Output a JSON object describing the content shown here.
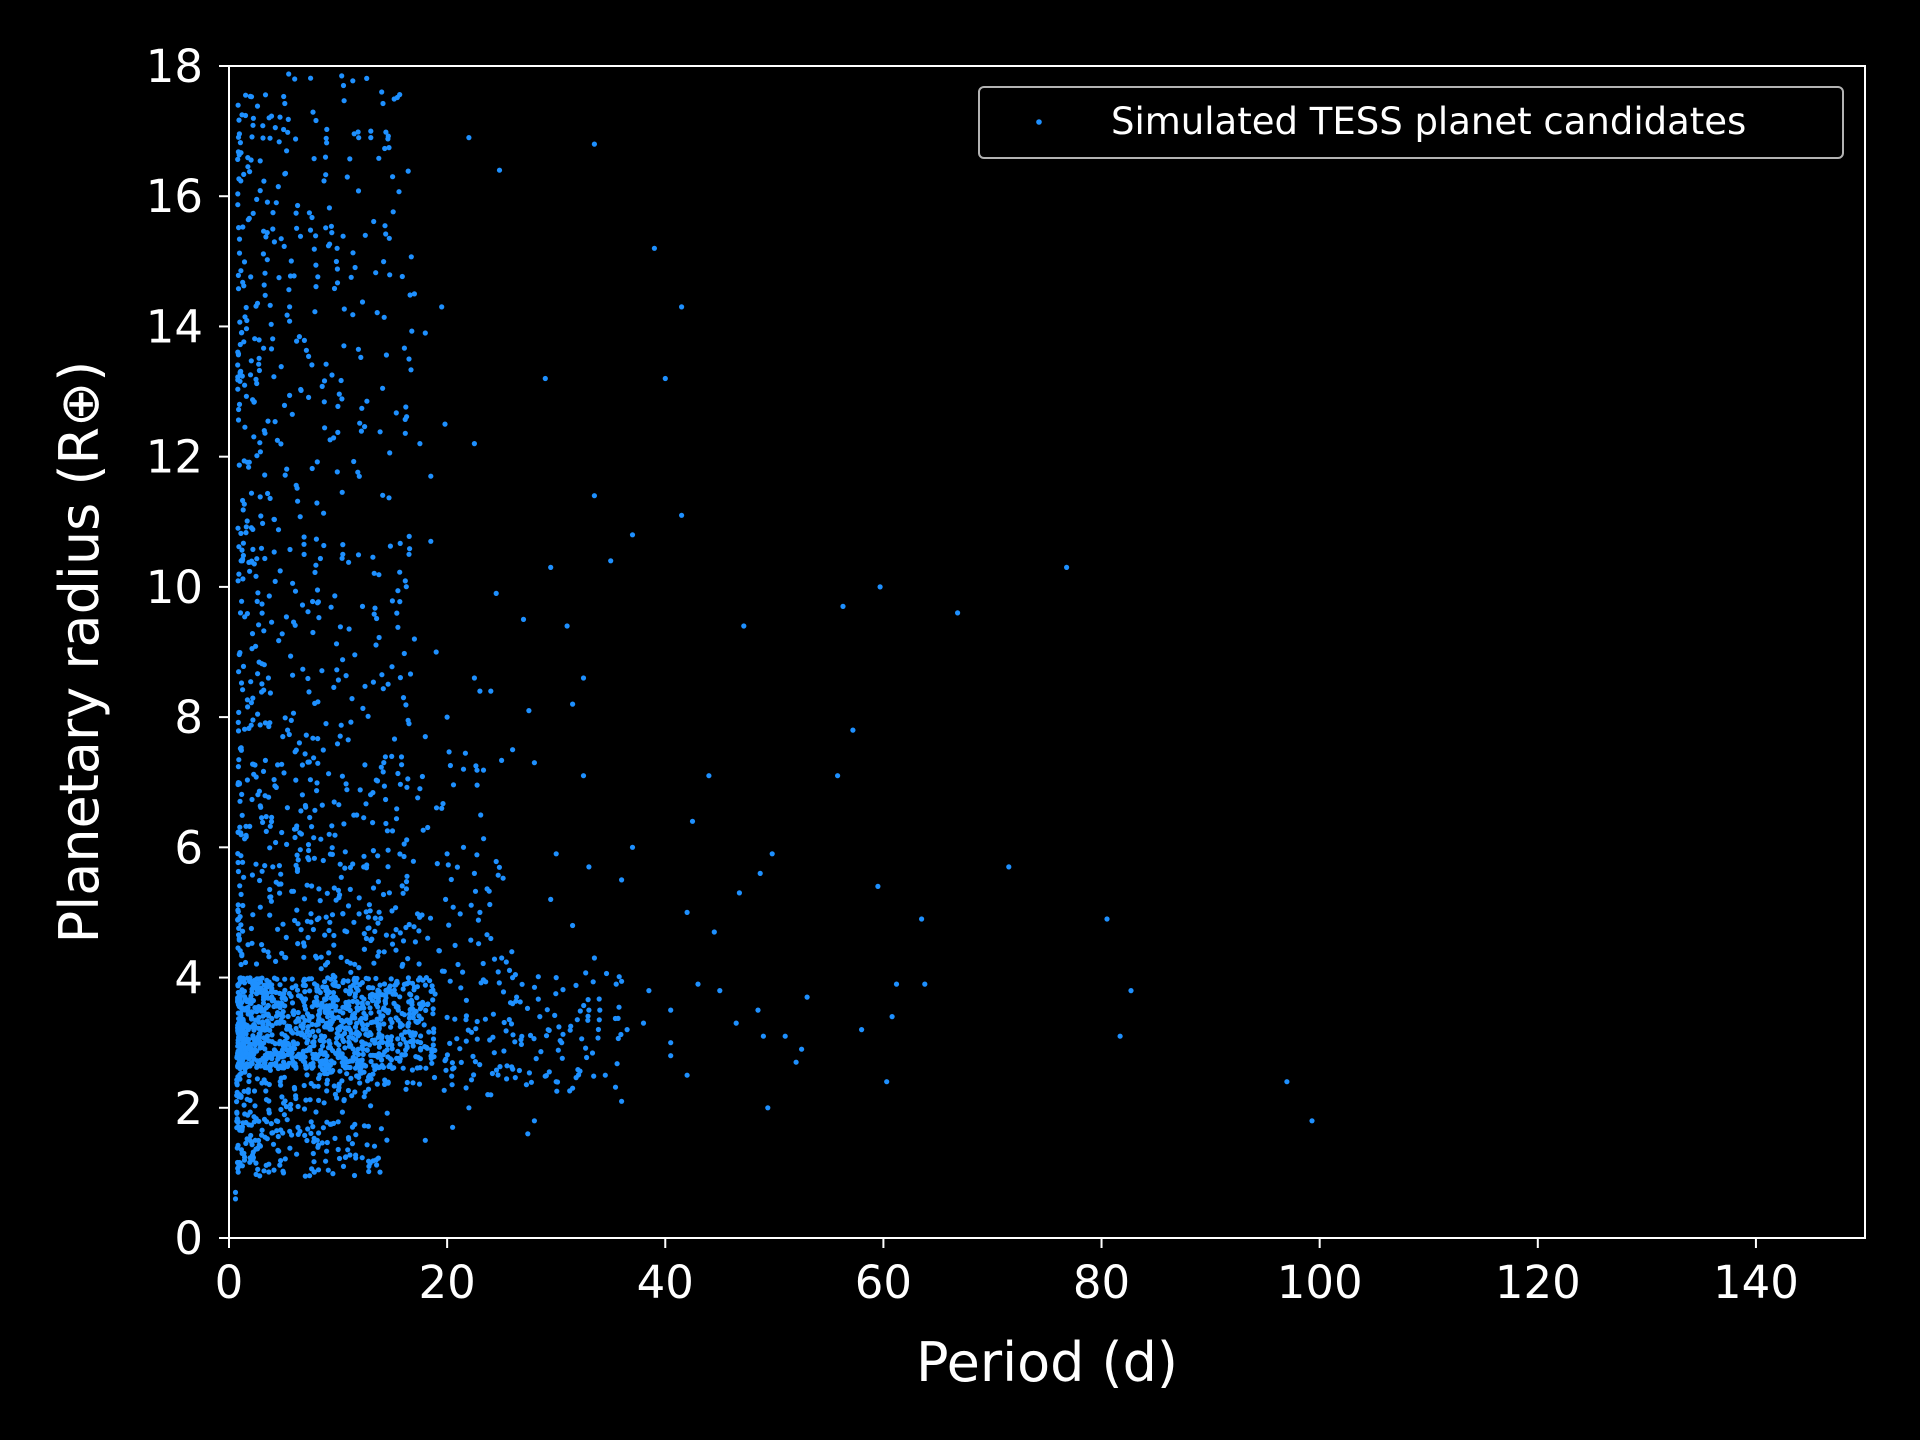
{
  "chart_data": {
    "type": "scatter",
    "title": "",
    "xlabel": "Period (d)",
    "ylabel": "Planetary radius (R⊕)",
    "xlim": [
      0,
      150
    ],
    "ylim": [
      0,
      18
    ],
    "xticks": [
      0,
      20,
      40,
      60,
      80,
      100,
      120,
      140
    ],
    "yticks": [
      0,
      2,
      4,
      6,
      8,
      10,
      12,
      14,
      16,
      18
    ],
    "grid": false,
    "legend_position": "top-right",
    "background": "#000000",
    "foreground": "#ffffff",
    "series": [
      {
        "name": "Simulated TESS planet candidates",
        "color": "#1e90ff",
        "points": [
          [
            22.0,
            16.9
          ],
          [
            24.8,
            16.4
          ],
          [
            33.5,
            16.8
          ],
          [
            14.0,
            17.6
          ],
          [
            10.5,
            17.7
          ],
          [
            13.0,
            17.0
          ],
          [
            39.0,
            15.2
          ],
          [
            41.5,
            14.3
          ],
          [
            29.0,
            13.2
          ],
          [
            40.0,
            13.2
          ],
          [
            22.5,
            12.2
          ],
          [
            19.8,
            12.5
          ],
          [
            33.5,
            11.4
          ],
          [
            41.5,
            11.1
          ],
          [
            37.0,
            10.8
          ],
          [
            35.0,
            10.4
          ],
          [
            29.5,
            10.3
          ],
          [
            18.5,
            10.7
          ],
          [
            24.5,
            9.9
          ],
          [
            27.0,
            9.5
          ],
          [
            31.0,
            9.4
          ],
          [
            47.2,
            9.4
          ],
          [
            56.3,
            9.7
          ],
          [
            59.7,
            10.0
          ],
          [
            66.8,
            9.6
          ],
          [
            76.8,
            10.3
          ],
          [
            32.5,
            8.6
          ],
          [
            31.5,
            8.2
          ],
          [
            27.5,
            8.1
          ],
          [
            26.0,
            7.5
          ],
          [
            23.0,
            8.4
          ],
          [
            24.0,
            8.4
          ],
          [
            22.5,
            8.6
          ],
          [
            57.2,
            7.8
          ],
          [
            55.8,
            7.1
          ],
          [
            44.0,
            7.1
          ],
          [
            32.5,
            7.1
          ],
          [
            28.0,
            7.3
          ],
          [
            42.5,
            6.4
          ],
          [
            37.0,
            6.0
          ],
          [
            49.8,
            5.9
          ],
          [
            48.7,
            5.6
          ],
          [
            36.0,
            5.5
          ],
          [
            33.0,
            5.7
          ],
          [
            30.0,
            5.9
          ],
          [
            46.8,
            5.3
          ],
          [
            59.5,
            5.4
          ],
          [
            71.5,
            5.7
          ],
          [
            63.5,
            4.9
          ],
          [
            80.5,
            4.9
          ],
          [
            42.0,
            5.0
          ],
          [
            44.5,
            4.7
          ],
          [
            31.5,
            4.8
          ],
          [
            29.5,
            5.2
          ],
          [
            33.5,
            4.3
          ],
          [
            38.5,
            3.8
          ],
          [
            40.5,
            3.5
          ],
          [
            43.0,
            3.9
          ],
          [
            45.0,
            3.8
          ],
          [
            46.5,
            3.3
          ],
          [
            48.5,
            3.5
          ],
          [
            49.0,
            3.1
          ],
          [
            51.0,
            3.1
          ],
          [
            52.5,
            2.9
          ],
          [
            53.0,
            3.7
          ],
          [
            58.0,
            3.2
          ],
          [
            60.8,
            3.4
          ],
          [
            61.2,
            3.9
          ],
          [
            63.8,
            3.9
          ],
          [
            82.7,
            3.8
          ],
          [
            81.7,
            3.1
          ],
          [
            60.3,
            2.4
          ],
          [
            97.0,
            2.4
          ],
          [
            99.3,
            1.8
          ],
          [
            49.4,
            2.0
          ],
          [
            52.0,
            2.7
          ],
          [
            42.0,
            2.5
          ],
          [
            40.5,
            2.8
          ],
          [
            36.0,
            2.1
          ],
          [
            34.5,
            2.5
          ],
          [
            31.5,
            2.3
          ],
          [
            30.0,
            2.4
          ],
          [
            28.0,
            1.8
          ],
          [
            27.4,
            1.6
          ],
          [
            24.0,
            2.2
          ],
          [
            22.0,
            2.0
          ],
          [
            20.5,
            1.7
          ],
          [
            18.0,
            1.5
          ],
          [
            13.5,
            1.2
          ],
          [
            10.5,
            1.1
          ],
          [
            7.0,
            0.95
          ],
          [
            5.0,
            1.0
          ],
          [
            0.6,
            0.7
          ],
          [
            0.6,
            0.6
          ],
          [
            1.2,
            1.3
          ],
          [
            26.0,
            3.6
          ],
          [
            28.5,
            3.4
          ],
          [
            30.5,
            3.0
          ],
          [
            33.0,
            3.5
          ],
          [
            34.0,
            3.5
          ],
          [
            36.5,
            3.2
          ],
          [
            38.0,
            3.3
          ],
          [
            40.5,
            3.0
          ],
          [
            35.5,
            3.9
          ],
          [
            30.0,
            4.0
          ],
          [
            25.0,
            4.3
          ],
          [
            26.0,
            4.0
          ],
          [
            24.0,
            4.6
          ],
          [
            21.0,
            4.2
          ],
          [
            23.0,
            5.0
          ],
          [
            22.5,
            5.6
          ],
          [
            20.0,
            5.9
          ],
          [
            21.5,
            6.0
          ],
          [
            19.5,
            6.6
          ],
          [
            17.5,
            6.9
          ],
          [
            18.0,
            7.7
          ],
          [
            16.5,
            7.9
          ],
          [
            16.0,
            8.3
          ],
          [
            20.0,
            8.0
          ],
          [
            21.5,
            7.2
          ],
          [
            19.0,
            9.0
          ],
          [
            17.0,
            9.2
          ],
          [
            16.5,
            10.5
          ],
          [
            17.5,
            12.2
          ],
          [
            18.5,
            11.7
          ],
          [
            16.5,
            13.5
          ],
          [
            17.0,
            14.5
          ],
          [
            19.5,
            14.3
          ],
          [
            18.0,
            13.9
          ],
          [
            15.0,
            16.3
          ],
          [
            12.5,
            15.4
          ],
          [
            13.0,
            16.9
          ]
        ]
      }
    ]
  }
}
